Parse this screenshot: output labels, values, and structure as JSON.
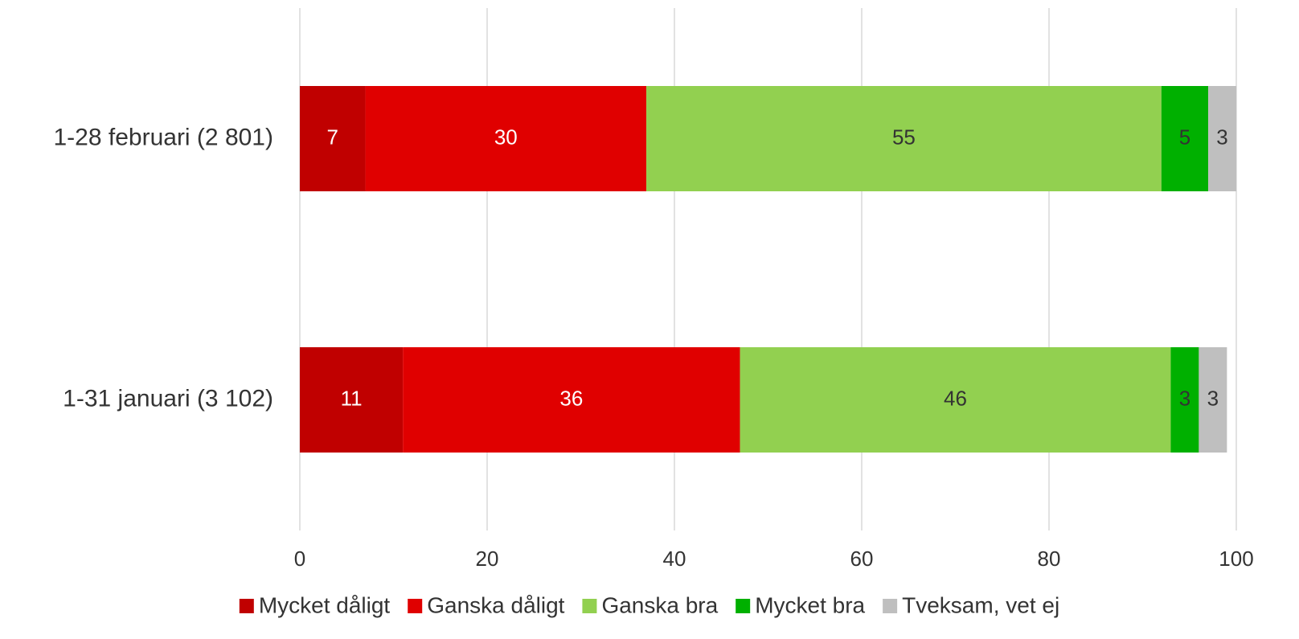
{
  "chart_data": {
    "type": "stacked_barh",
    "categories": [
      "1-28 februari (2 801)",
      "1-31 januari (3 102)"
    ],
    "series": [
      {
        "name": "Mycket dåligt",
        "color": "#c00000",
        "label_color": "#ffffff",
        "values": [
          7,
          11
        ]
      },
      {
        "name": "Ganska dåligt",
        "color": "#e00000",
        "label_color": "#ffffff",
        "values": [
          30,
          36
        ]
      },
      {
        "name": "Ganska bra",
        "color": "#92d050",
        "label_color": "#333333",
        "values": [
          55,
          46
        ]
      },
      {
        "name": "Mycket bra",
        "color": "#00b000",
        "label_color": "#333333",
        "values": [
          5,
          3
        ]
      },
      {
        "name": "Tveksam, vet ej",
        "color": "#bfbfbf",
        "label_color": "#333333",
        "values": [
          3,
          3
        ]
      }
    ],
    "xlim": [
      0,
      100
    ],
    "xticks": [
      0,
      20,
      40,
      60,
      80,
      100
    ],
    "grid": true,
    "legend": "bottom"
  }
}
